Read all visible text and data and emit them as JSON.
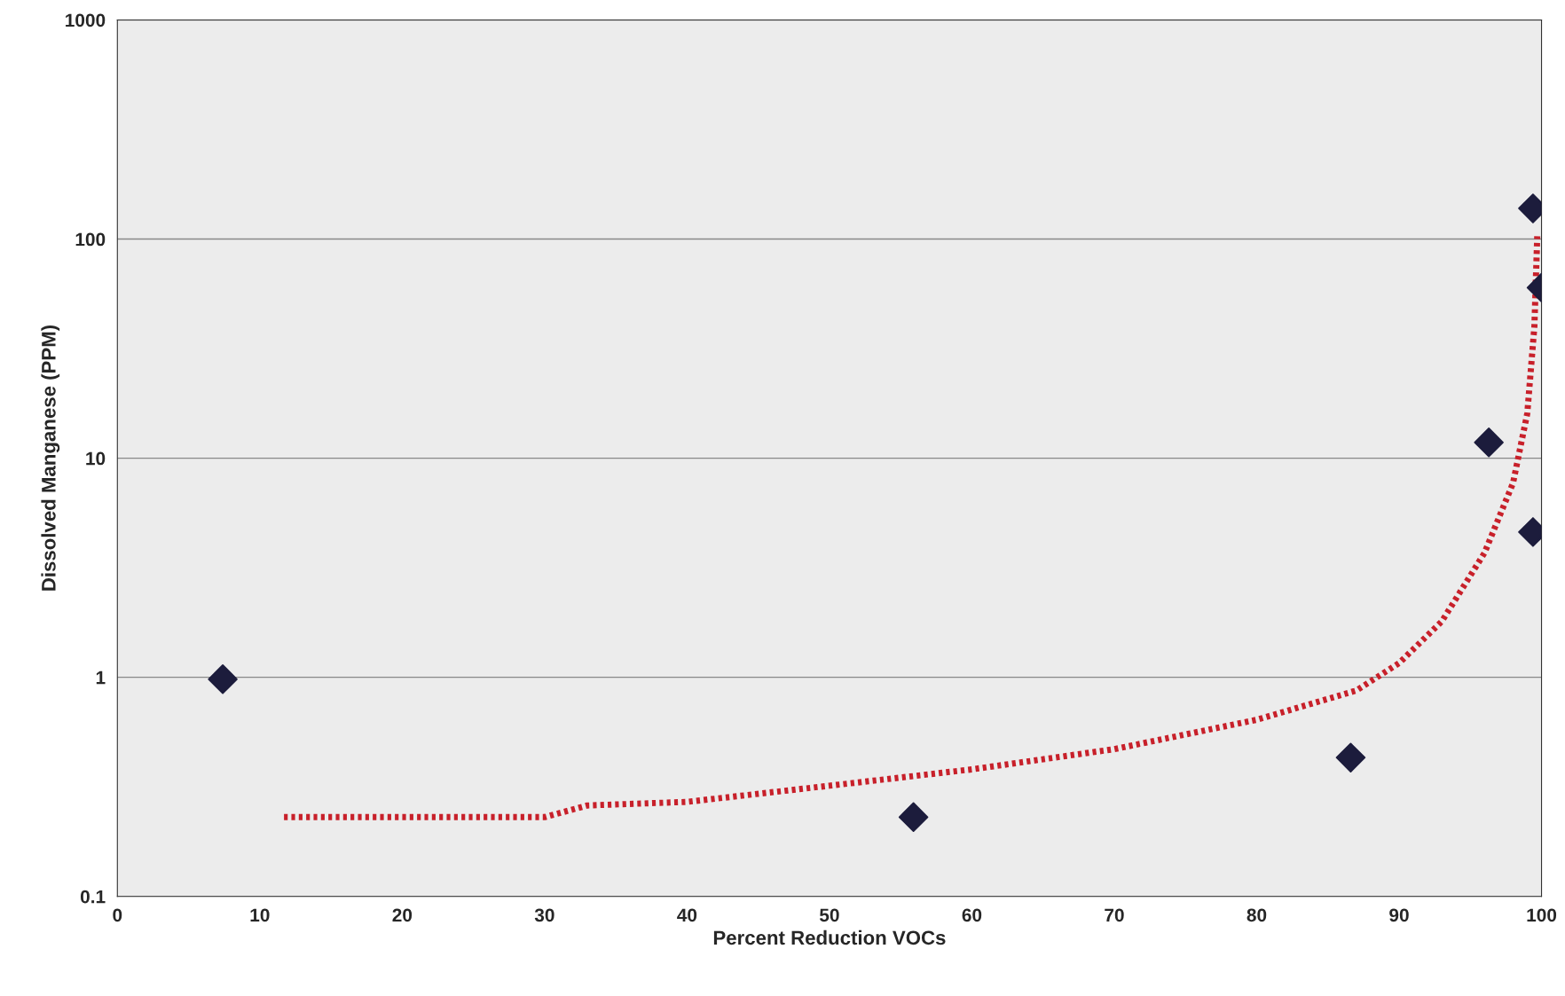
{
  "chart_data": {
    "type": "scatter",
    "xlabel": "Percent Reduction VOCs",
    "ylabel": "Dissolved Manganese (PPM)",
    "xlim": [
      0,
      100
    ],
    "xticks": [
      0,
      10,
      20,
      30,
      40,
      50,
      60,
      70,
      80,
      90,
      100
    ],
    "ylim": [
      0.1,
      1000
    ],
    "yticks": [
      0.1,
      1,
      10,
      100,
      1000
    ],
    "log": "y",
    "grid": "y",
    "legend": false,
    "series": [
      {
        "color": "#1c1c3c",
        "marker": "diamond",
        "x": [
          7.4,
          55.9,
          86.6,
          96.3,
          99.4,
          99.4,
          100
        ],
        "values": [
          0.98,
          0.23,
          0.43,
          11.8,
          4.6,
          138,
          60
        ]
      },
      {
        "type": "line",
        "color": "#c8202a",
        "line_style": "dotted",
        "marker": "none",
        "x": [
          11.7,
          30,
          33,
          40,
          50,
          60,
          70,
          80,
          87,
          90,
          93,
          96,
          98,
          99,
          99.5,
          99.7
        ],
        "values": [
          0.23,
          0.23,
          0.26,
          0.27,
          0.32,
          0.38,
          0.47,
          0.64,
          0.87,
          1.16,
          1.8,
          3.7,
          7.7,
          16,
          40,
          103
        ]
      }
    ]
  }
}
